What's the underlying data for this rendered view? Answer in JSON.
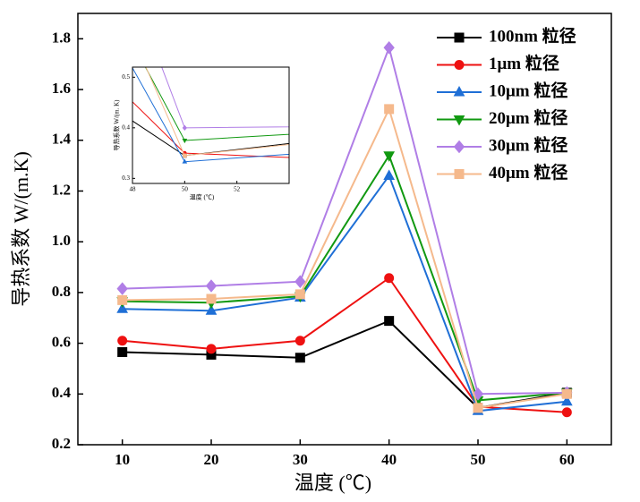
{
  "chart_data": {
    "type": "line",
    "xlabel": "温度 (℃)",
    "ylabel": "导热系数 W/(m.K)",
    "x": [
      10,
      20,
      30,
      40,
      50,
      60
    ],
    "xlim": [
      5,
      65
    ],
    "ylim": [
      0.2,
      1.9
    ],
    "xticks": [
      10,
      20,
      30,
      40,
      50,
      60
    ],
    "yticks": [
      0.2,
      0.4,
      0.6,
      0.8,
      {
        "value": 1.0,
        "label": "1.0"
      },
      1.2,
      1.4,
      1.6,
      1.8
    ],
    "legend": "upper right",
    "series": [
      {
        "name": "100nm 粒径",
        "color": "#000000",
        "marker": "square",
        "values": [
          0.565,
          0.555,
          0.543,
          0.688,
          0.345,
          0.405
        ]
      },
      {
        "name": "1μm 粒径",
        "color": "#ee1111",
        "marker": "circle",
        "values": [
          0.61,
          0.578,
          0.61,
          0.857,
          0.35,
          0.328
        ]
      },
      {
        "name": "10μm 粒径",
        "color": "#1f6fd6",
        "marker": "triangle-up",
        "values": [
          0.735,
          0.728,
          0.78,
          1.26,
          0.333,
          0.37
        ]
      },
      {
        "name": "20μm 粒径",
        "color": "#119911",
        "marker": "triangle-down",
        "values": [
          0.765,
          0.76,
          0.785,
          1.34,
          0.375,
          0.405
        ]
      },
      {
        "name": "30μm 粒径",
        "color": "#b07ee6",
        "marker": "diamond",
        "values": [
          0.815,
          0.826,
          0.843,
          1.765,
          0.4,
          0.405
        ]
      },
      {
        "name": "40μm 粒径",
        "color": "#f5b98c",
        "marker": "square",
        "values": [
          0.77,
          0.775,
          0.793,
          1.523,
          0.345,
          0.4
        ]
      }
    ],
    "inset": {
      "xlim": [
        48,
        54
      ],
      "ylim": [
        0.29,
        0.52
      ],
      "xticks": [
        48,
        50,
        52
      ],
      "yticks": [
        0.3,
        0.4,
        0.5
      ],
      "xlabel": "温度 (℃)",
      "ylabel": "导热系数 W/(m. K)"
    }
  }
}
